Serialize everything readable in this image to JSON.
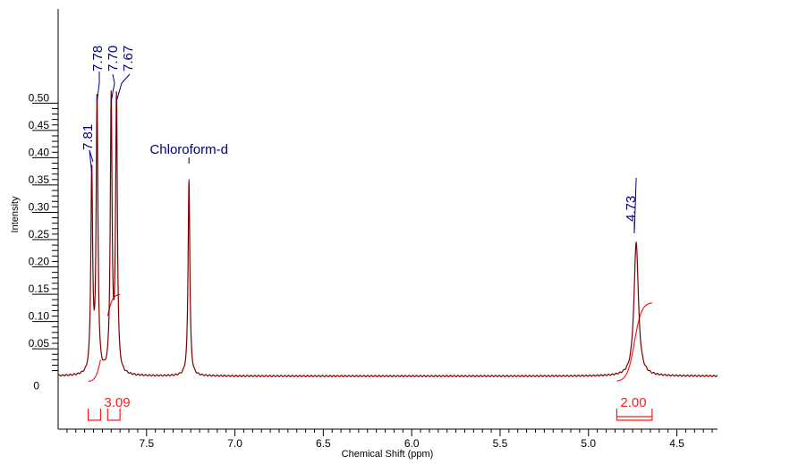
{
  "chart_data": {
    "type": "line",
    "xlabel": "Chemical Shift (ppm)",
    "ylabel": "Intensity",
    "xlim": [
      8.0,
      4.27
    ],
    "x_reversed": true,
    "ylim": [
      -0.012,
      0.53
    ],
    "x_ticks": [
      7.5,
      7.0,
      6.5,
      6.0,
      5.5,
      5.0,
      4.5
    ],
    "x_tick_labels": [
      "7.5",
      "7.0",
      "6.5",
      "6.0",
      "5.5",
      "5.0",
      "4.5"
    ],
    "y_ticks": [
      0,
      0.05,
      0.1,
      0.15,
      0.2,
      0.25,
      0.3,
      0.35,
      0.4,
      0.45,
      0.5
    ],
    "y_tick_labels": [
      "0",
      "0.05",
      "0.10",
      "0.15",
      "0.20",
      "0.25",
      "0.30",
      "0.35",
      "0.40",
      "0.45",
      "0.50"
    ],
    "grid": false,
    "series": [
      {
        "color": "#7a0000",
        "peaks": [
          {
            "shift": 7.81,
            "height": 0.37,
            "width": 0.006
          },
          {
            "shift": 7.78,
            "height": 0.5,
            "width": 0.006
          },
          {
            "shift": 7.7,
            "height": 0.5,
            "width": 0.006
          },
          {
            "shift": 7.67,
            "height": 0.5,
            "width": 0.006
          },
          {
            "shift": 7.26,
            "height": 0.36,
            "width": 0.006
          },
          {
            "shift": 4.73,
            "height": 0.245,
            "width": 0.015
          }
        ]
      }
    ],
    "peak_labels": [
      {
        "text": "7.81",
        "shift": 7.81
      },
      {
        "text": "7.78",
        "shift": 7.78
      },
      {
        "text": "7.70",
        "shift": 7.7
      },
      {
        "text": "7.67",
        "shift": 7.67
      },
      {
        "text": "4.73",
        "shift": 4.73
      }
    ],
    "solvent_label": {
      "text": "Chloroform-d",
      "shift": 7.26
    },
    "integrals": [
      {
        "label": "3.09",
        "regions": [
          [
            7.83,
            7.76
          ],
          [
            7.72,
            7.65
          ]
        ],
        "final_value": 0.16
      },
      {
        "label": "2.00",
        "regions": [
          [
            4.84,
            4.64
          ]
        ],
        "final_value": 0.145
      }
    ],
    "colors": {
      "spectrum": "#7a0000",
      "integral": "#ff1a1a",
      "peak_label": "#00007f"
    }
  }
}
